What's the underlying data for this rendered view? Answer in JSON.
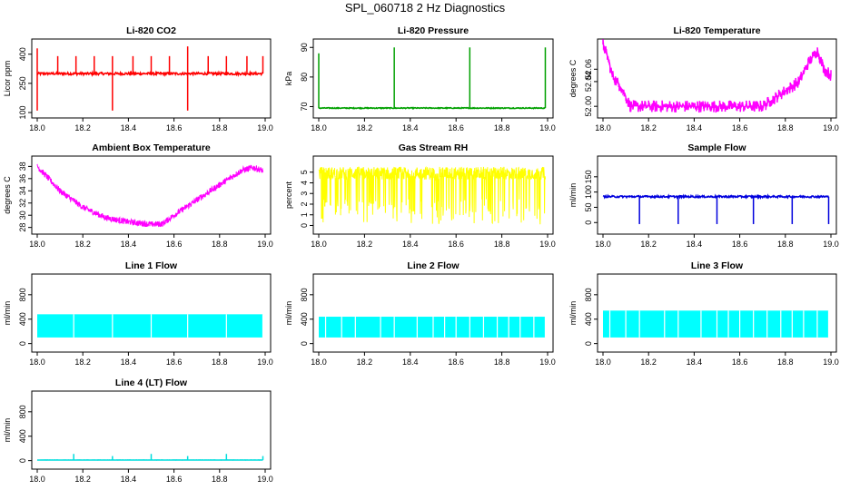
{
  "figure_title": "SPL_060718  2 Hz Diagnostics",
  "chart_data": [
    {
      "type": "line",
      "title": "Li-820 CO2",
      "ylabel": "Licor ppm",
      "color": "#ff0000",
      "xlim": [
        1,
        19
      ],
      "ylim": [
        100,
        450
      ],
      "x_ticks": [
        18.0,
        18.2,
        18.4,
        18.6,
        18.8,
        19.0
      ],
      "y_ticks": [
        100,
        250,
        400
      ],
      "baseline": 300,
      "noise": 12,
      "spikes_up": [
        [
          18.0,
          430
        ],
        [
          18.09,
          390
        ],
        [
          18.17,
          390
        ],
        [
          18.25,
          390
        ],
        [
          18.33,
          390
        ],
        [
          18.42,
          390
        ],
        [
          18.5,
          390
        ],
        [
          18.58,
          390
        ],
        [
          18.66,
          440
        ],
        [
          18.75,
          390
        ],
        [
          18.83,
          390
        ],
        [
          18.92,
          390
        ],
        [
          18.99,
          390
        ]
      ],
      "spikes_down": [
        [
          18.0,
          110
        ],
        [
          18.33,
          110
        ],
        [
          18.66,
          110
        ]
      ]
    },
    {
      "type": "line",
      "title": "Li-820 Pressure",
      "ylabel": "kPa",
      "color": "#00a000",
      "xlim": [
        18,
        19
      ],
      "ylim": [
        68,
        91
      ],
      "x_ticks": [
        18.0,
        18.2,
        18.4,
        18.6,
        18.8,
        19.0
      ],
      "y_ticks": [
        70,
        80,
        90
      ],
      "baseline": 69.5,
      "noise": 0.3,
      "spikes_up": [
        [
          18.0,
          88
        ],
        [
          18.33,
          90
        ],
        [
          18.66,
          90
        ],
        [
          18.99,
          90
        ]
      ],
      "spikes_down": []
    },
    {
      "type": "line",
      "title": "Li-820 Temperature",
      "ylabel": "degrees C",
      "color": "#ff00ff",
      "xlim": [
        18,
        19
      ],
      "ylim": [
        51.99,
        52.1
      ],
      "x_ticks": [
        18.0,
        18.2,
        18.4,
        18.6,
        18.8,
        19.0
      ],
      "y_ticks": [
        52.0,
        52.04,
        52.06
      ],
      "y_tick_labels": [
        "52.00",
        "52.04",
        "52.06"
      ],
      "profile": [
        [
          18.0,
          52.1
        ],
        [
          18.02,
          52.08
        ],
        [
          18.04,
          52.05
        ],
        [
          18.08,
          52.03
        ],
        [
          18.12,
          52.0
        ],
        [
          18.7,
          52.0
        ],
        [
          18.78,
          52.02
        ],
        [
          18.86,
          52.04
        ],
        [
          18.9,
          52.07
        ],
        [
          18.94,
          52.09
        ],
        [
          18.97,
          52.06
        ],
        [
          19.0,
          52.05
        ]
      ]
    },
    {
      "type": "line",
      "title": "Ambient Box Temperature",
      "ylabel": "degrees C",
      "color": "#ff00ff",
      "xlim": [
        18,
        19
      ],
      "ylim": [
        27.8,
        38.8
      ],
      "x_ticks": [
        18.0,
        18.2,
        18.4,
        18.6,
        18.8,
        19.0
      ],
      "y_ticks": [
        28,
        30,
        32,
        34,
        36,
        38
      ],
      "noise": 0.5,
      "profile": [
        [
          18.0,
          38.0
        ],
        [
          18.1,
          34.0
        ],
        [
          18.2,
          31.3
        ],
        [
          18.3,
          29.6
        ],
        [
          18.4,
          28.9
        ],
        [
          18.5,
          28.5
        ],
        [
          18.55,
          28.6
        ],
        [
          18.6,
          30.0
        ],
        [
          18.7,
          32.5
        ],
        [
          18.8,
          35.0
        ],
        [
          18.9,
          37.4
        ],
        [
          18.95,
          37.8
        ],
        [
          19.0,
          37.2
        ]
      ]
    },
    {
      "type": "line",
      "title": "Gas Stream RH",
      "ylabel": "percent",
      "color": "#ffff00",
      "xlim": [
        18,
        19
      ],
      "ylim": [
        -0.3,
        6.0
      ],
      "x_ticks": [
        18.0,
        18.2,
        18.4,
        18.6,
        18.8,
        19.0
      ],
      "y_ticks": [
        0,
        1,
        2,
        3,
        4,
        5
      ],
      "band": [
        4.3,
        5.5
      ],
      "dips_to": [
        0.1,
        2.5
      ]
    },
    {
      "type": "line",
      "title": "Sample Flow",
      "ylabel": "ml/min",
      "color": "#0000dd",
      "xlim": [
        18,
        19
      ],
      "ylim": [
        -20,
        200
      ],
      "x_ticks": [
        18.0,
        18.2,
        18.4,
        18.6,
        18.8,
        19.0
      ],
      "y_ticks": [
        0,
        50,
        100,
        150
      ],
      "baseline": 85,
      "noise": 6,
      "spikes_down": [
        [
          18.16,
          -5
        ],
        [
          18.33,
          -5
        ],
        [
          18.5,
          -5
        ],
        [
          18.66,
          -5
        ],
        [
          18.83,
          -5
        ],
        [
          18.99,
          -5
        ]
      ]
    },
    {
      "type": "area",
      "title": "Line 1 Flow",
      "ylabel": "ml/min",
      "color": "#00ffff",
      "xlim": [
        18,
        19
      ],
      "ylim": [
        -50,
        1050
      ],
      "x_ticks": [
        18.0,
        18.2,
        18.4,
        18.6,
        18.8,
        19.0
      ],
      "y_ticks": [
        0,
        400,
        800
      ],
      "band": [
        100,
        480
      ],
      "gaps": [
        18.16,
        18.33,
        18.5,
        18.66,
        18.83,
        18.99
      ]
    },
    {
      "type": "area",
      "title": "Line 2 Flow",
      "ylabel": "ml/min",
      "color": "#00ffff",
      "xlim": [
        18,
        19
      ],
      "ylim": [
        -50,
        1050
      ],
      "x_ticks": [
        18.0,
        18.2,
        18.4,
        18.6,
        18.8,
        19.0
      ],
      "y_ticks": [
        0,
        400,
        800
      ],
      "band": [
        100,
        440
      ],
      "gaps": [
        18.03,
        18.1,
        18.16,
        18.27,
        18.33,
        18.43,
        18.5,
        18.55,
        18.6,
        18.66,
        18.72,
        18.78,
        18.83,
        18.88,
        18.94,
        18.99
      ]
    },
    {
      "type": "area",
      "title": "Line 3 Flow",
      "ylabel": "ml/min",
      "color": "#00ffff",
      "xlim": [
        18,
        19
      ],
      "ylim": [
        -50,
        1050
      ],
      "x_ticks": [
        18.0,
        18.2,
        18.4,
        18.6,
        18.8,
        19.0
      ],
      "y_ticks": [
        0,
        400,
        800
      ],
      "band": [
        100,
        540
      ],
      "gaps": [
        18.03,
        18.1,
        18.16,
        18.27,
        18.33,
        18.43,
        18.5,
        18.55,
        18.6,
        18.66,
        18.72,
        18.78,
        18.83,
        18.88,
        18.94,
        18.99
      ]
    },
    {
      "type": "line",
      "title": "Line 4 (LT) Flow",
      "ylabel": "ml/min",
      "color": "#00dddd",
      "xlim": [
        18,
        19
      ],
      "ylim": [
        -50,
        1050
      ],
      "x_ticks": [
        18.0,
        18.2,
        18.4,
        18.6,
        18.8,
        19.0
      ],
      "y_ticks": [
        0,
        400,
        800
      ],
      "baseline": 10,
      "noise": 2,
      "spikes_up": [
        [
          18.16,
          110
        ],
        [
          18.33,
          75
        ],
        [
          18.5,
          110
        ],
        [
          18.66,
          75
        ],
        [
          18.83,
          110
        ],
        [
          18.99,
          75
        ]
      ]
    }
  ]
}
